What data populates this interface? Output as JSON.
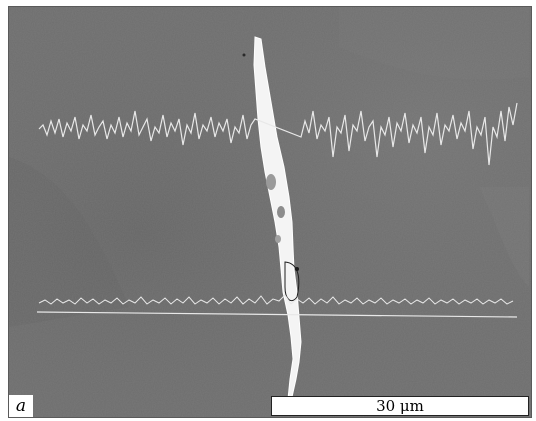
{
  "panel_label": "a",
  "scale_bar": {
    "label": "30 μm"
  },
  "colors": {
    "matrix": "#6e6e6e",
    "crack": "#f4f4f4",
    "profile_line": "#e8e8e8"
  }
}
